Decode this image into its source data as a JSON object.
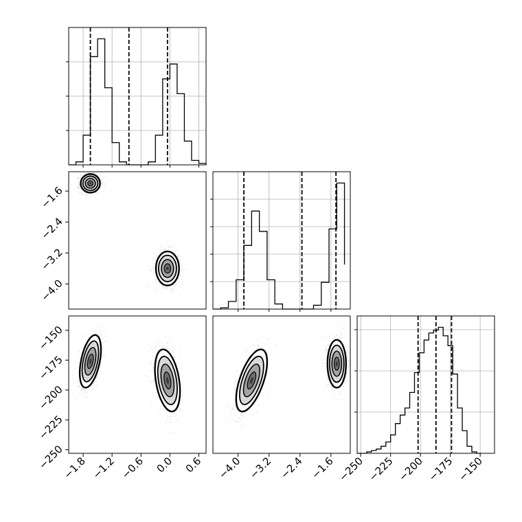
{
  "chart_data": {
    "type": "corner",
    "title": "",
    "parameters": [
      {
        "index": 0,
        "label": "",
        "range": [
          -2.1,
          0.75
        ],
        "ticks": [
          "-1.8",
          "-1.2",
          "-0.6",
          "0.0",
          "0.6"
        ]
      },
      {
        "index": 1,
        "label": "",
        "range": [
          -4.65,
          -1.1
        ],
        "ticks": [
          "-4.0",
          "-3.2",
          "-2.4",
          "-1.6"
        ]
      },
      {
        "index": 2,
        "label": "",
        "range": [
          -253,
          -138
        ],
        "ticks": [
          "-250",
          "-225",
          "-200",
          "-175",
          "-150"
        ]
      }
    ],
    "histograms": [
      {
        "param": 0,
        "bin_edges": [
          -2.1,
          -1.95,
          -1.8,
          -1.65,
          -1.5,
          -1.35,
          -1.2,
          -1.05,
          -0.9,
          -0.75,
          -0.6,
          -0.45,
          -0.3,
          -0.15,
          0.0,
          0.15,
          0.3,
          0.45,
          0.6,
          0.75
        ],
        "counts": [
          0,
          0.02,
          0.2,
          0.73,
          0.85,
          0.52,
          0.15,
          0.02,
          0,
          0,
          0,
          0.02,
          0.2,
          0.58,
          0.68,
          0.48,
          0.16,
          0.03,
          0.01
        ],
        "quantiles": [
          -1.65,
          -0.85,
          -0.05
        ]
      },
      {
        "param": 1,
        "bin_edges": [
          -4.65,
          -4.45,
          -4.25,
          -4.05,
          -3.85,
          -3.65,
          -3.45,
          -3.25,
          -3.05,
          -2.85,
          -2.65,
          -2.45,
          -2.25,
          -2.05,
          -1.85,
          -1.65,
          -1.45,
          -1.25
        ],
        "counts": [
          0,
          0.01,
          0.06,
          0.23,
          0.5,
          0.77,
          0.61,
          0.23,
          0.04,
          0,
          0,
          0,
          0,
          0.03,
          0.21,
          0.63,
          0.99,
          0.35
        ],
        "quantiles": [
          -3.85,
          -2.35,
          -1.47
        ]
      },
      {
        "param": 2,
        "bin_edges": [
          -253,
          -249,
          -245,
          -241,
          -237,
          -233,
          -229,
          -225,
          -221,
          -217,
          -213,
          -209,
          -205,
          -201,
          -197,
          -193,
          -189,
          -185,
          -181,
          -177,
          -173,
          -169,
          -165,
          -161,
          -157,
          -153,
          -149
        ],
        "counts": [
          0,
          0,
          0.01,
          0.02,
          0.03,
          0.05,
          0.08,
          0.13,
          0.21,
          0.27,
          0.32,
          0.43,
          0.57,
          0.71,
          0.8,
          0.85,
          0.87,
          0.89,
          0.83,
          0.76,
          0.56,
          0.32,
          0.16,
          0.05,
          0.01,
          0
        ],
        "quantiles": [
          -202,
          -187,
          -174
        ]
      }
    ],
    "pairs": [
      {
        "x_param": 0,
        "y_param": 1,
        "clusters": [
          {
            "center": [
              -1.65,
              -1.4
            ],
            "sigma": [
              0.1,
              0.12
            ],
            "rho": 0.0
          },
          {
            "center": [
              -0.05,
              -3.6
            ],
            "sigma": [
              0.12,
              0.22
            ],
            "rho": 0.0
          }
        ]
      },
      {
        "x_param": 0,
        "y_param": 2,
        "clusters": [
          {
            "center": [
              -1.65,
              -176
            ],
            "sigma": [
              0.11,
              11
            ],
            "rho": 0.45
          },
          {
            "center": [
              -0.05,
              -192
            ],
            "sigma": [
              0.13,
              13
            ],
            "rho": -0.35
          }
        ]
      },
      {
        "x_param": 1,
        "y_param": 2,
        "clusters": [
          {
            "center": [
              -3.65,
              -192
            ],
            "sigma": [
              0.2,
              13
            ],
            "rho": 0.6
          },
          {
            "center": [
              -1.45,
              -178
            ],
            "sigma": [
              0.12,
              10
            ],
            "rho": 0.0
          }
        ]
      }
    ],
    "grid": true,
    "histogram_ticks_labeled": false
  }
}
